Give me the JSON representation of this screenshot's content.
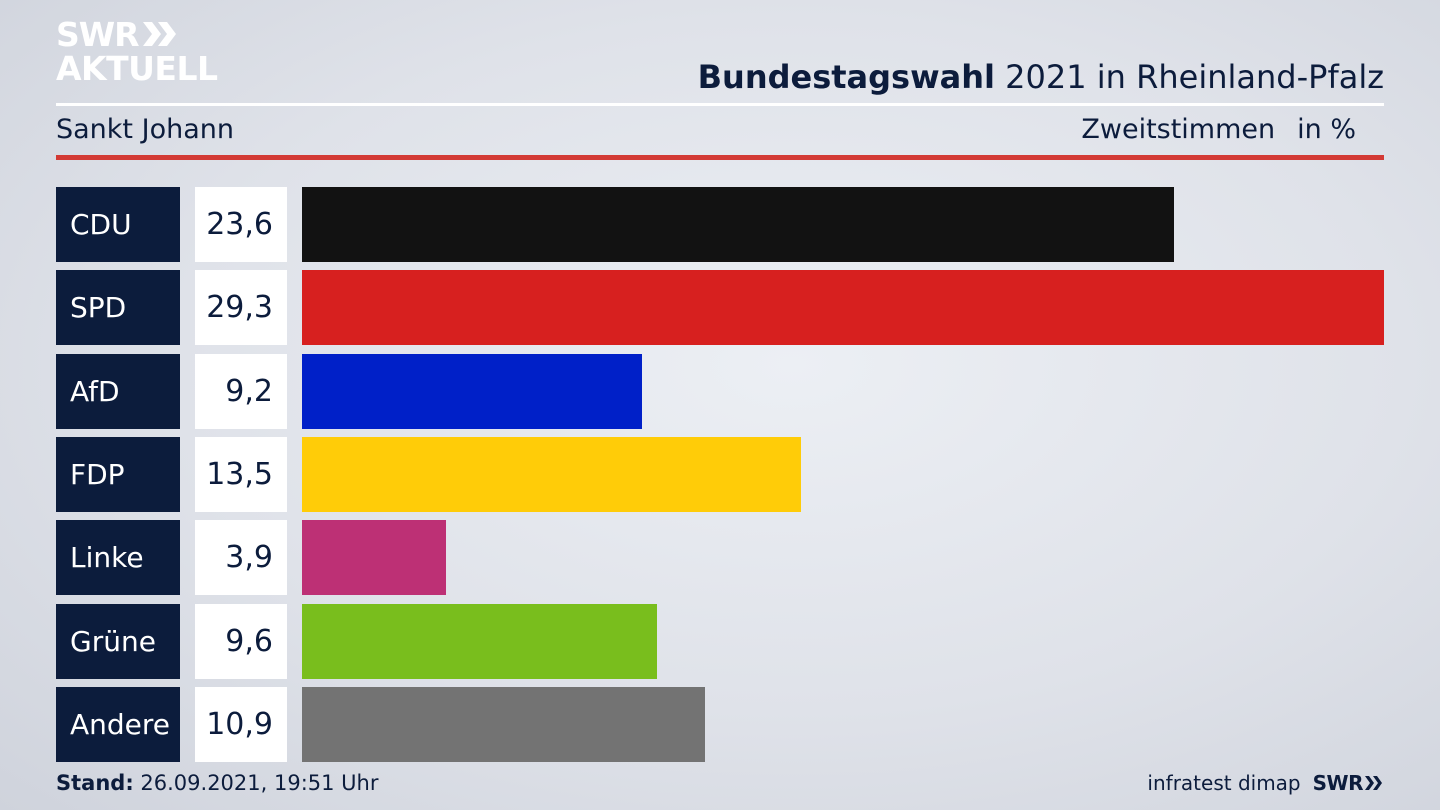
{
  "branding": {
    "logo_line1": "SWR",
    "logo_line2": "AKTUELL",
    "footer_source": "infratest dimap",
    "footer_brand": "SWR"
  },
  "header": {
    "title_bold": "Bundestagswahl",
    "title_rest": " 2021 in Rheinland-Pfalz",
    "location": "Sankt Johann",
    "measure": "Zweitstimmen",
    "unit": "in %"
  },
  "footer": {
    "stand_label": "Stand:",
    "stand_value": " 26.09.2021, 19:51 Uhr"
  },
  "chart_data": {
    "type": "bar",
    "orientation": "horizontal",
    "title": "Bundestagswahl 2021 in Rheinland-Pfalz",
    "subtitle": "Sankt Johann",
    "xlabel": "Zweitstimmen in %",
    "categories": [
      "CDU",
      "SPD",
      "AfD",
      "FDP",
      "Linke",
      "Grüne",
      "Andere"
    ],
    "values": [
      23.6,
      29.3,
      9.2,
      13.5,
      3.9,
      9.6,
      10.9
    ],
    "value_labels": [
      "23,6",
      "29,3",
      "9,2",
      "13,5",
      "3,9",
      "9,6",
      "10,9"
    ],
    "colors": [
      "#121212",
      "#d7201f",
      "#0020c8",
      "#ffcc08",
      "#bd3075",
      "#79be1d",
      "#737373"
    ],
    "grid": false,
    "legend": "none"
  }
}
